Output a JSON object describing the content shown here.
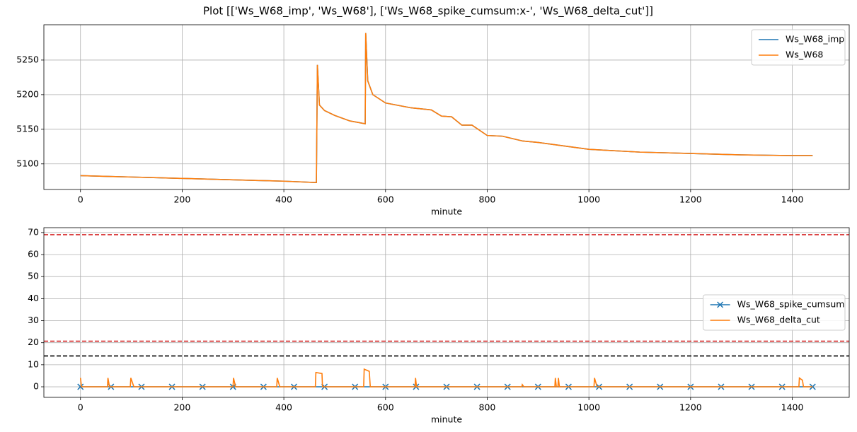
{
  "title": "Plot [['Ws_W68_imp', 'Ws_W68'], ['Ws_W68_spike_cumsum:x-', 'Ws_W68_delta_cut']]",
  "chart_data": [
    {
      "type": "line",
      "xlabel": "minute",
      "grid": true,
      "legend": "upper right",
      "xlim": [
        -72,
        1512
      ],
      "xticks": [
        0,
        200,
        400,
        600,
        800,
        1000,
        1200,
        1400
      ],
      "ylim": [
        5063,
        5301
      ],
      "yticks": [
        5100,
        5150,
        5200,
        5250
      ],
      "x": [
        0,
        50,
        100,
        150,
        200,
        250,
        300,
        350,
        400,
        464,
        466,
        470,
        480,
        500,
        530,
        560,
        561,
        565,
        575,
        600,
        650,
        690,
        710,
        730,
        750,
        770,
        800,
        830,
        870,
        900,
        950,
        1000,
        1050,
        1100,
        1200,
        1300,
        1400,
        1440
      ],
      "series": [
        {
          "name": "Ws_W68_imp",
          "color": "#1f77b4",
          "values": [
            5083,
            5082,
            5081,
            5080,
            5079,
            5078,
            5077,
            5076,
            5075,
            5073,
            5243,
            5185,
            5177,
            5170,
            5162,
            5158,
            5289,
            5220,
            5200,
            5188,
            5181,
            5178,
            5169,
            5168,
            5156,
            5156,
            5141,
            5140,
            5133,
            5131,
            5126,
            5121,
            5119,
            5117,
            5115,
            5113,
            5112,
            5112
          ]
        },
        {
          "name": "Ws_W68",
          "color": "#ff7f0e",
          "values": [
            5083,
            5082,
            5081,
            5080,
            5079,
            5078,
            5077,
            5076,
            5075,
            5073,
            5243,
            5185,
            5177,
            5170,
            5162,
            5158,
            5289,
            5220,
            5200,
            5188,
            5181,
            5178,
            5169,
            5168,
            5156,
            5156,
            5141,
            5140,
            5133,
            5131,
            5126,
            5121,
            5119,
            5117,
            5115,
            5113,
            5112,
            5112
          ]
        }
      ]
    },
    {
      "type": "line",
      "xlabel": "minute",
      "grid": true,
      "legend": "center right",
      "xlim": [
        -72,
        1512
      ],
      "xticks": [
        0,
        200,
        400,
        600,
        800,
        1000,
        1200,
        1400
      ],
      "ylim": [
        -4.8,
        72.2
      ],
      "yticks": [
        0,
        10,
        20,
        30,
        40,
        50,
        60,
        70
      ],
      "hlines": [
        {
          "value": 69,
          "color": "#d62728"
        },
        {
          "value": 20.7,
          "color": "#d62728"
        },
        {
          "value": 14,
          "color": "#000000"
        }
      ],
      "series": [
        {
          "name": "Ws_W68_spike_cumsum",
          "color": "#1f77b4",
          "marker": "x",
          "x": [
            0,
            60,
            120,
            180,
            240,
            300,
            360,
            420,
            480,
            540,
            600,
            660,
            720,
            780,
            840,
            900,
            960,
            1020,
            1080,
            1140,
            1200,
            1260,
            1320,
            1380,
            1440
          ],
          "values": [
            0,
            0,
            0,
            0,
            0,
            0,
            0,
            0,
            0,
            0,
            0,
            0,
            0,
            0,
            0,
            0,
            0,
            0,
            0,
            0,
            0,
            0,
            0,
            0,
            0
          ]
        },
        {
          "name": "Ws_W68_delta_cut",
          "color": "#ff7f0e",
          "x": [
            0,
            2,
            53,
            54,
            57,
            98,
            99,
            105,
            300,
            301,
            305,
            386,
            387,
            392,
            462,
            463,
            475,
            476,
            557,
            558,
            568,
            570,
            658,
            659,
            661,
            868,
            869,
            872,
            933,
            934,
            936,
            939,
            940,
            942,
            1010,
            1011,
            1016,
            1413,
            1414,
            1420,
            1422,
            1440
          ],
          "values": [
            4,
            0,
            0,
            4,
            0,
            0,
            4,
            0,
            0,
            4,
            0,
            0,
            4,
            0,
            0,
            6.5,
            6,
            0,
            0,
            8,
            7,
            0,
            0,
            4,
            0,
            0,
            1,
            0,
            0,
            4,
            0,
            0,
            4,
            0,
            0,
            4,
            0,
            0,
            4,
            3,
            0,
            0
          ]
        }
      ]
    }
  ]
}
